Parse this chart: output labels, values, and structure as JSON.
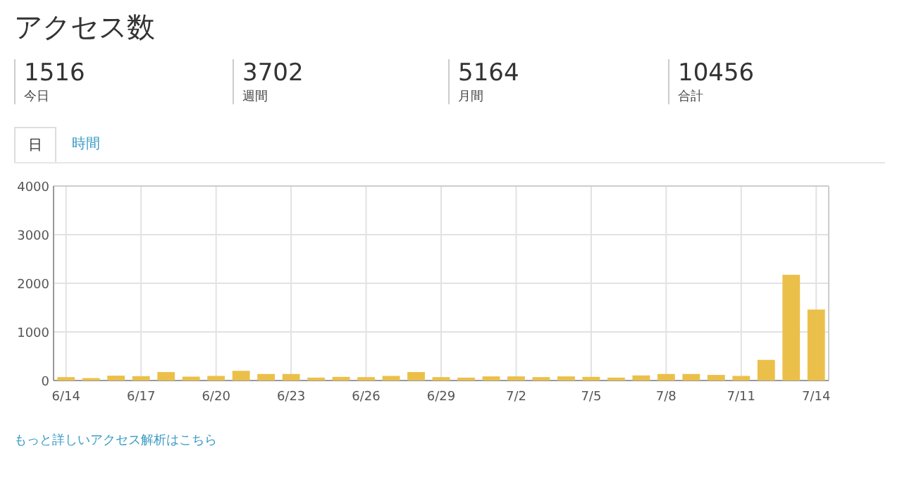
{
  "chart_data": [
    {
      "type": "other",
      "title": "アクセス数",
      "annotations": [
        "1516",
        "今日",
        "3702",
        "週間",
        "5164",
        "月間",
        "10456",
        "合計"
      ]
    },
    {
      "type": "bar",
      "categories": [
        "6/14",
        null,
        null,
        "6/17",
        null,
        null,
        "6/20",
        null,
        null,
        "6/23",
        null,
        null,
        "6/26",
        null,
        null,
        "6/29",
        null,
        null,
        "7/2",
        null,
        null,
        "7/5",
        null,
        null,
        "7/8",
        null,
        null,
        "7/11",
        null,
        null,
        "7/14"
      ],
      "values": [
        70,
        50,
        100,
        90,
        175,
        80,
        95,
        200,
        135,
        135,
        60,
        75,
        70,
        95,
        175,
        70,
        60,
        85,
        85,
        70,
        85,
        75,
        60,
        105,
        135,
        135,
        115,
        95,
        425,
        2175,
        1460
      ],
      "color": "#ebc04a",
      "ylim": [
        0,
        4000
      ],
      "yticks": [
        0,
        1000,
        2000,
        3000,
        4000
      ],
      "grid": true,
      "annotations": [
        "日",
        "時間",
        "もっと詳しいアクセス解析はこちら"
      ]
    }
  ]
}
